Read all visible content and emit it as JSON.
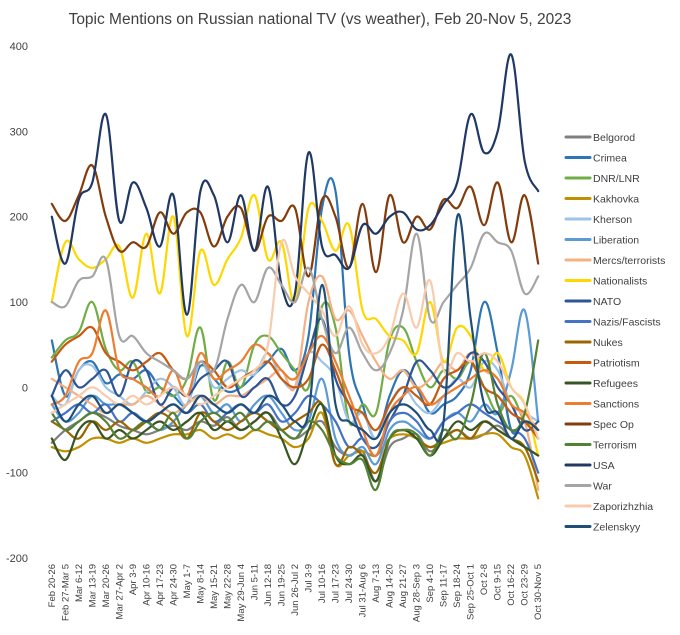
{
  "chart_data": {
    "type": "line",
    "title": "Topic Mentions on Russian national TV (vs weather), Feb 20-Nov 5, 2023",
    "xlabel": "",
    "ylabel": "",
    "ylim": [
      -200,
      400
    ],
    "yticks": [
      -200,
      -100,
      0,
      100,
      200,
      300,
      400
    ],
    "grid": false,
    "legend_position": "right",
    "categories": [
      "Feb 20-26",
      "Feb 27-Mar 5",
      "Mar 6-12",
      "Mar 13-19",
      "Mar 20-26",
      "Mar 27-Apr 2",
      "Apr 3-9",
      "Apr 10-16",
      "Apr 17-23",
      "Apr 24-30",
      "May 1-7",
      "May 8-14",
      "May 15-21",
      "May 22-28",
      "May 29-Jun 4",
      "Jun 5-11",
      "Jun 12-18",
      "Jun 19-25",
      "Jun 26-Jul 2",
      "Jul 3-9",
      "Jul 10-16",
      "Jul 17-23",
      "Jul 24-30",
      "Jul 31-Aug 6",
      "Aug 7-13",
      "Aug 14-20",
      "Aug 21-27",
      "Aug 28-Sep 3",
      "Sep 4-10",
      "Sep 11-17",
      "Sep 18-24",
      "Sep 25-Oct 1",
      "Oct 2-8",
      "Oct 9-15",
      "Oct 16-22",
      "Oct 23-29",
      "Oct 30-Nov 5"
    ],
    "series": [
      {
        "name": "Belgorod",
        "color": "#7f7f7f",
        "values": [
          -65,
          -50,
          -40,
          -30,
          -35,
          -45,
          -50,
          -55,
          -50,
          -45,
          -50,
          -40,
          -45,
          -35,
          -50,
          -40,
          -30,
          -50,
          -60,
          -50,
          -40,
          -70,
          -80,
          -75,
          -110,
          -70,
          -60,
          -55,
          -75,
          -60,
          -50,
          -60,
          -55,
          -45,
          -60,
          -70,
          -80
        ]
      },
      {
        "name": "Crimea",
        "color": "#2e75b6",
        "values": [
          55,
          -10,
          20,
          30,
          5,
          15,
          10,
          20,
          0,
          -10,
          -20,
          25,
          10,
          -5,
          0,
          15,
          30,
          45,
          20,
          60,
          210,
          230,
          40,
          -20,
          -60,
          -10,
          20,
          0,
          -30,
          -20,
          -10,
          20,
          100,
          40,
          -50,
          -40,
          -60
        ]
      },
      {
        "name": "DNR/LNR",
        "color": "#70ad47",
        "values": [
          35,
          55,
          65,
          100,
          45,
          20,
          30,
          -5,
          0,
          -10,
          10,
          70,
          -15,
          30,
          0,
          50,
          60,
          40,
          20,
          0,
          95,
          70,
          -40,
          -20,
          -30,
          55,
          70,
          30,
          0,
          20,
          10,
          30,
          0,
          -30,
          -10,
          -40,
          -50
        ]
      },
      {
        "name": "Kakhovka",
        "color": "#bf9000",
        "values": [
          -70,
          -75,
          -70,
          -60,
          -60,
          -65,
          -60,
          -65,
          -60,
          -55,
          -55,
          -50,
          -60,
          -55,
          -60,
          -50,
          -55,
          -60,
          -70,
          -60,
          -30,
          -90,
          -80,
          -75,
          -80,
          -60,
          -55,
          -60,
          -70,
          -65,
          -60,
          -60,
          -55,
          -55,
          -70,
          -80,
          -130
        ]
      },
      {
        "name": "Kherson",
        "color": "#9dc3e6",
        "values": [
          -10,
          -20,
          20,
          25,
          0,
          -10,
          -20,
          -5,
          10,
          0,
          -20,
          30,
          0,
          10,
          20,
          15,
          40,
          10,
          0,
          40,
          30,
          10,
          -40,
          -30,
          -60,
          -20,
          0,
          -20,
          -30,
          -10,
          10,
          0,
          30,
          20,
          -20,
          -30,
          -40
        ]
      },
      {
        "name": "Liberation",
        "color": "#5b9bd5",
        "values": [
          -20,
          -40,
          -30,
          -10,
          -20,
          -20,
          -30,
          -40,
          -50,
          -40,
          -20,
          -10,
          -30,
          -20,
          -40,
          -20,
          -10,
          -30,
          -50,
          -40,
          10,
          -60,
          -80,
          -70,
          -90,
          -50,
          -40,
          -50,
          -60,
          -40,
          -30,
          -40,
          -20,
          -30,
          20,
          90,
          -40
        ]
      },
      {
        "name": "Mercs/terrorists",
        "color": "#f4b183",
        "values": [
          10,
          0,
          -10,
          -20,
          -30,
          -20,
          -20,
          -10,
          -20,
          -30,
          -20,
          -10,
          -20,
          -10,
          -10,
          0,
          10,
          20,
          0,
          100,
          130,
          80,
          90,
          60,
          30,
          10,
          20,
          0,
          10,
          30,
          20,
          40,
          20,
          10,
          -20,
          -40,
          -120
        ]
      },
      {
        "name": "Nationalists",
        "color": "#ffd700",
        "values": [
          100,
          170,
          150,
          140,
          150,
          165,
          105,
          180,
          110,
          200,
          60,
          160,
          120,
          150,
          175,
          225,
          150,
          170,
          100,
          210,
          195,
          160,
          190,
          90,
          80,
          60,
          55,
          40,
          100,
          30,
          70,
          60,
          20,
          40,
          0,
          -20,
          -80
        ]
      },
      {
        "name": "NATO",
        "color": "#2f5597",
        "values": [
          -10,
          20,
          0,
          10,
          20,
          -10,
          30,
          20,
          -20,
          0,
          -10,
          10,
          20,
          30,
          -10,
          0,
          10,
          -20,
          -10,
          40,
          80,
          10,
          -20,
          -60,
          -70,
          -40,
          -10,
          30,
          20,
          0,
          10,
          40,
          30,
          0,
          -20,
          -50,
          -40
        ]
      },
      {
        "name": "Nazis/Fascists",
        "color": "#4472c4",
        "values": [
          -40,
          -30,
          -20,
          -30,
          -20,
          -40,
          -30,
          -40,
          -30,
          -20,
          -30,
          -20,
          -40,
          -30,
          -20,
          -30,
          -20,
          -40,
          -30,
          -10,
          -20,
          -40,
          -70,
          -60,
          -80,
          -40,
          -30,
          -40,
          -60,
          -40,
          -30,
          -20,
          -30,
          -40,
          -50,
          -60,
          -100
        ]
      },
      {
        "name": "Nukes",
        "color": "#9c6500",
        "values": [
          -40,
          -50,
          -60,
          -40,
          -50,
          -40,
          -50,
          -40,
          -30,
          -40,
          -60,
          -30,
          -40,
          -50,
          -40,
          -30,
          -40,
          -50,
          -40,
          -30,
          -20,
          -90,
          -70,
          -80,
          -100,
          -60,
          -50,
          -60,
          -70,
          -60,
          -50,
          -60,
          -40,
          -50,
          -60,
          -70,
          -110
        ]
      },
      {
        "name": "Patriotism",
        "color": "#c55a11",
        "values": [
          30,
          50,
          60,
          70,
          40,
          30,
          20,
          30,
          40,
          20,
          10,
          30,
          20,
          0,
          10,
          20,
          30,
          10,
          0,
          10,
          50,
          20,
          -20,
          -30,
          -50,
          -20,
          0,
          -10,
          -20,
          10,
          20,
          30,
          0,
          -10,
          -30,
          -40,
          -60
        ]
      },
      {
        "name": "Refugees",
        "color": "#375623",
        "values": [
          -60,
          -85,
          -50,
          -40,
          -60,
          -50,
          -60,
          -50,
          -40,
          -50,
          -40,
          -30,
          -50,
          -40,
          -50,
          -40,
          -30,
          -60,
          -90,
          -50,
          -20,
          -80,
          -90,
          -80,
          -110,
          -60,
          -50,
          -60,
          -80,
          -60,
          -40,
          -50,
          -40,
          -50,
          -60,
          -70,
          -80
        ]
      },
      {
        "name": "Sanctions",
        "color": "#ed7d31",
        "values": [
          -20,
          -10,
          30,
          40,
          90,
          20,
          10,
          0,
          -10,
          20,
          -10,
          40,
          10,
          20,
          30,
          50,
          40,
          20,
          10,
          40,
          60,
          30,
          -10,
          -50,
          -80,
          -30,
          -10,
          0,
          -20,
          -10,
          0,
          10,
          20,
          10,
          -20,
          -30,
          -50
        ]
      },
      {
        "name": "Spec Op",
        "color": "#843c0c",
        "values": [
          215,
          195,
          225,
          260,
          200,
          160,
          170,
          165,
          205,
          180,
          205,
          205,
          165,
          200,
          210,
          160,
          200,
          195,
          210,
          130,
          220,
          200,
          140,
          215,
          135,
          225,
          170,
          200,
          185,
          220,
          210,
          235,
          190,
          240,
          170,
          225,
          145
        ]
      },
      {
        "name": "Terrorism",
        "color": "#548235",
        "values": [
          -30,
          -50,
          -40,
          -30,
          -40,
          -60,
          -50,
          -40,
          -50,
          -30,
          -60,
          -40,
          -30,
          -40,
          -30,
          -50,
          -40,
          -50,
          -60,
          -40,
          -50,
          -80,
          -90,
          -85,
          -120,
          -60,
          -50,
          -55,
          -80,
          -50,
          -60,
          -20,
          40,
          -20,
          -50,
          -30,
          55
        ]
      },
      {
        "name": "USA",
        "color": "#203864",
        "values": [
          200,
          145,
          220,
          240,
          320,
          195,
          240,
          210,
          165,
          225,
          85,
          230,
          225,
          170,
          225,
          160,
          235,
          120,
          110,
          275,
          165,
          155,
          140,
          190,
          180,
          200,
          205,
          185,
          190,
          215,
          240,
          320,
          275,
          300,
          390,
          265,
          230
        ]
      },
      {
        "name": "War",
        "color": "#a5a5a5",
        "values": [
          100,
          95,
          125,
          130,
          150,
          60,
          60,
          40,
          30,
          20,
          10,
          30,
          20,
          80,
          120,
          100,
          140,
          120,
          100,
          140,
          80,
          40,
          70,
          40,
          20,
          40,
          90,
          180,
          80,
          100,
          120,
          140,
          180,
          170,
          160,
          110,
          130
        ]
      },
      {
        "name": "Zaporizhzhia",
        "color": "#f8cbad",
        "values": [
          -30,
          -20,
          -10,
          0,
          -10,
          -20,
          -10,
          -20,
          -10,
          0,
          -10,
          -20,
          -10,
          0,
          10,
          20,
          50,
          170,
          130,
          110,
          90,
          60,
          95,
          50,
          40,
          60,
          110,
          70,
          125,
          20,
          40,
          30,
          40,
          30,
          0,
          -20,
          -60
        ]
      },
      {
        "name": "Zelenskyy",
        "color": "#1f4e79",
        "values": [
          -10,
          -40,
          -20,
          -10,
          -30,
          -20,
          -30,
          -40,
          -30,
          -20,
          -30,
          -10,
          -20,
          -30,
          -20,
          -30,
          -10,
          -20,
          -40,
          -30,
          120,
          -20,
          -40,
          -50,
          -60,
          -30,
          -20,
          -30,
          -50,
          -40,
          200,
          80,
          -20,
          -30,
          -60,
          -40,
          -50
        ]
      }
    ]
  }
}
